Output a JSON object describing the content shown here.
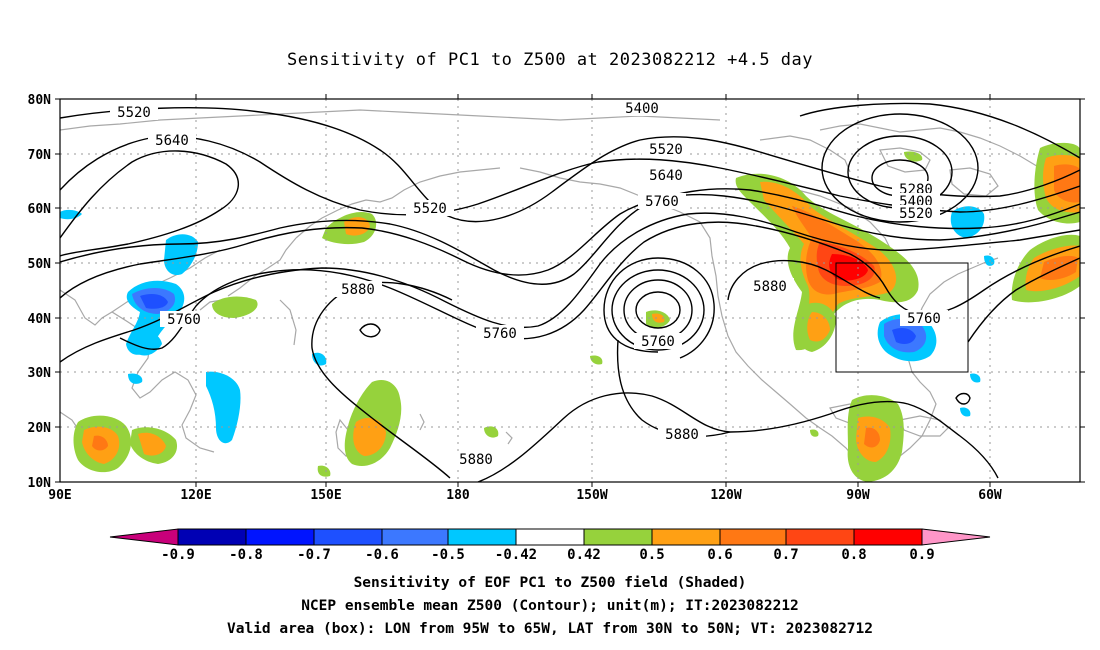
{
  "title": "Sensitivity of PC1 to Z500 at 2023082212 +4.5 day",
  "lat_labels": [
    "80N",
    "70N",
    "60N",
    "50N",
    "40N",
    "30N",
    "20N",
    "10N"
  ],
  "lon_labels": [
    "90E",
    "120E",
    "150E",
    "180",
    "150W",
    "120W",
    "90W",
    "60W"
  ],
  "contour_labels": [
    {
      "text": "5520"
    },
    {
      "text": "5640"
    },
    {
      "text": "5400"
    },
    {
      "text": "5520"
    },
    {
      "text": "5640"
    },
    {
      "text": "5760"
    },
    {
      "text": "5520"
    },
    {
      "text": "5280"
    },
    {
      "text": "5400"
    },
    {
      "text": "5520"
    },
    {
      "text": "5880"
    },
    {
      "text": "5760"
    },
    {
      "text": "5760"
    },
    {
      "text": "5760"
    },
    {
      "text": "5880"
    },
    {
      "text": "5760"
    },
    {
      "text": "5880"
    },
    {
      "text": "5880"
    }
  ],
  "colorbar": {
    "colors": [
      "#c8007a",
      "#0000b4",
      "#0014ff",
      "#1e50ff",
      "#3c78ff",
      "#28b4ff",
      "#00c8ff",
      "#ffffff",
      "#96d23c",
      "#ffa014",
      "#ff7814",
      "#ff4614",
      "#ff0000",
      "#ff96c8"
    ],
    "labels": [
      "-0.9",
      "-0.8",
      "-0.7",
      "-0.6",
      "-0.5",
      "-0.42",
      "0.42",
      "0.5",
      "0.6",
      "0.7",
      "0.8",
      "0.9"
    ]
  },
  "captions": {
    "line1": "Sensitivity of EOF PC1 to Z500 field (Shaded)",
    "line2": "NCEP ensemble mean Z500 (Contour); unit(m); IT:2023082212",
    "line3": "Valid area (box): LON from 95W to 65W, LAT from 30N to 50N; VT: 2023082712"
  }
}
